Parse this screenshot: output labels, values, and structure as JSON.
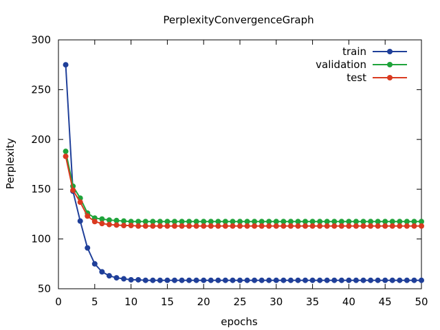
{
  "chart_data": {
    "type": "line",
    "title": "PerplexityConvergenceGraph",
    "xlabel": "epochs",
    "ylabel": "Perplexity",
    "xlim": [
      0,
      50
    ],
    "ylim": [
      50,
      300
    ],
    "xticks": [
      0,
      5,
      10,
      15,
      20,
      25,
      30,
      35,
      40,
      45,
      50
    ],
    "yticks": [
      50,
      100,
      150,
      200,
      250,
      300
    ],
    "grid": false,
    "legend": "top-right",
    "x": [
      1,
      2,
      3,
      4,
      5,
      6,
      7,
      8,
      9,
      10,
      11,
      12,
      13,
      14,
      15,
      16,
      17,
      18,
      19,
      20,
      21,
      22,
      23,
      24,
      25,
      26,
      27,
      28,
      29,
      30,
      31,
      32,
      33,
      34,
      35,
      36,
      37,
      38,
      39,
      40,
      41,
      42,
      43,
      44,
      45,
      46,
      47,
      48,
      49,
      50
    ],
    "series": [
      {
        "name": "train",
        "color": "#1f3f99",
        "values": [
          275,
          148,
          118,
          91,
          75,
          67,
          63,
          61,
          60,
          59,
          59,
          58.5,
          58.5,
          58.5,
          58.5,
          58.5,
          58.5,
          58.5,
          58.5,
          58.5,
          58.5,
          58.5,
          58.5,
          58.5,
          58.5,
          58.5,
          58.5,
          58.5,
          58.5,
          58.5,
          58.5,
          58.5,
          58.5,
          58.5,
          58.5,
          58.5,
          58.5,
          58.5,
          58.5,
          58.5,
          58.5,
          58.5,
          58.5,
          58.5,
          58.5,
          58.5,
          58.5,
          58.5,
          58.5,
          58.5
        ]
      },
      {
        "name": "validation",
        "color": "#1ea33a",
        "values": [
          188,
          153,
          141,
          126,
          121,
          120,
          119,
          118.5,
          118,
          117.5,
          117.5,
          117.5,
          117.5,
          117.5,
          117.5,
          117.5,
          117.5,
          117.5,
          117.5,
          117.5,
          117.5,
          117.5,
          117.5,
          117.5,
          117.5,
          117.5,
          117.5,
          117.5,
          117.5,
          117.5,
          117.5,
          117.5,
          117.5,
          117.5,
          117.5,
          117.5,
          117.5,
          117.5,
          117.5,
          117.5,
          117.5,
          117.5,
          117.5,
          117.5,
          117.5,
          117.5,
          117.5,
          117.5,
          117.5,
          117.5
        ]
      },
      {
        "name": "test",
        "color": "#d93a20",
        "values": [
          183,
          149,
          137,
          123,
          117.5,
          115.5,
          114.5,
          114,
          113.5,
          113.5,
          113,
          113,
          113,
          113,
          113,
          113,
          113,
          113,
          113,
          113,
          113,
          113,
          113,
          113,
          113,
          113,
          113,
          113,
          113,
          113,
          113,
          113,
          113,
          113,
          113,
          113,
          113,
          113,
          113,
          113,
          113,
          113,
          113,
          113,
          113,
          113,
          113,
          113,
          113,
          113
        ]
      }
    ]
  }
}
